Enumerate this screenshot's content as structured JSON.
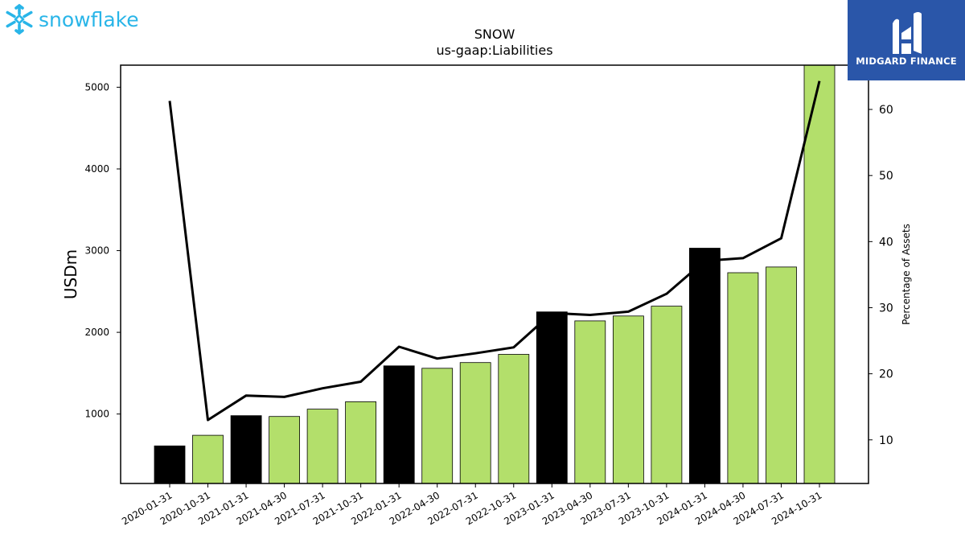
{
  "logos": {
    "left_text": "snowflake",
    "left_icon": "snowflake-icon",
    "right_text": "MIDGARD FINANCE",
    "right_icon": "midgard-monogram-icon",
    "left_color": "#29b5e8",
    "right_bg": "#2a56a9"
  },
  "chart_data": {
    "type": "bar",
    "title": "SNOW",
    "subtitle": "us-gaap:Liabilities",
    "ylabel": "USDm",
    "y2label": "Percentage of Assets",
    "categories": [
      "2020-01-31",
      "2020-10-31",
      "2021-01-31",
      "2021-04-30",
      "2021-07-31",
      "2021-10-31",
      "2022-01-31",
      "2022-04-30",
      "2022-07-31",
      "2022-10-31",
      "2023-01-31",
      "2023-04-30",
      "2023-07-31",
      "2023-10-31",
      "2024-01-31",
      "2024-04-30",
      "2024-07-31",
      "2024-10-31"
    ],
    "series": [
      {
        "type": "bar",
        "values": [
          610,
          740,
          980,
          970,
          1060,
          1150,
          1590,
          1560,
          1630,
          1730,
          2250,
          2140,
          2200,
          2320,
          3030,
          2730,
          2800,
          5270
        ]
      },
      {
        "type": "line",
        "axis": "right",
        "values": [
          61.3,
          13.0,
          16.7,
          16.5,
          17.8,
          18.8,
          24.1,
          22.3,
          23.1,
          24.0,
          29.2,
          28.9,
          29.4,
          32.1,
          37.1,
          37.5,
          40.5,
          64.3
        ]
      }
    ],
    "highlight_categories": [
      "2020-01-31",
      "2021-01-31",
      "2022-01-31",
      "2023-01-31",
      "2024-01-31"
    ],
    "colors": {
      "bar": "#b3df6b",
      "bar_highlight": "#000000",
      "line": "#000000"
    },
    "ylim": [
      150,
      5270
    ],
    "yticks": [
      1000,
      2000,
      3000,
      4000,
      5000
    ],
    "y2lim": [
      3.4,
      66.7
    ],
    "y2ticks": [
      10,
      20,
      30,
      40,
      50,
      60
    ],
    "grid": false
  }
}
